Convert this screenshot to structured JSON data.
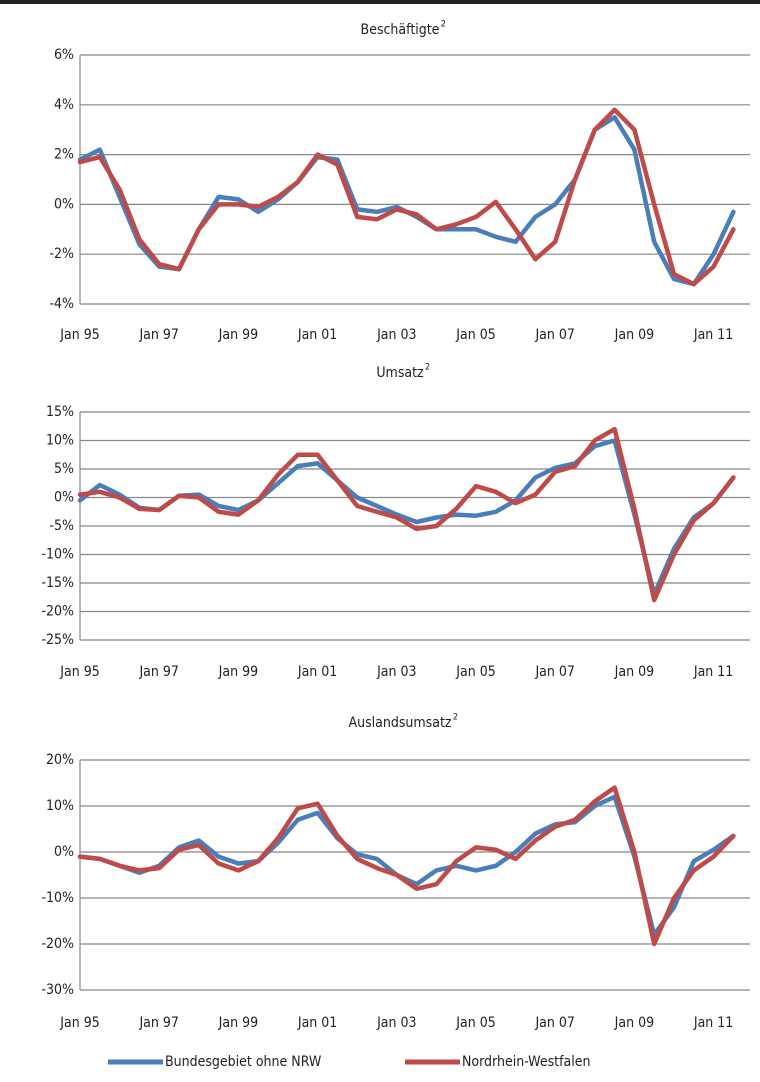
{
  "charts": [
    {
      "type": "line",
      "title": "Beschäftigte",
      "title_note": "2",
      "categories": [
        "Jan 95",
        null,
        null,
        null,
        "Jan 97",
        null,
        null,
        null,
        "Jan 99",
        null,
        null,
        null,
        "Jan 01",
        null,
        null,
        null,
        "Jan 03",
        null,
        null,
        null,
        "Jan 05",
        null,
        null,
        null,
        "Jan 07",
        null,
        null,
        null,
        "Jan 09",
        null,
        null,
        null,
        "Jan 11",
        null
      ],
      "ylim": [
        -4,
        6
      ],
      "yticks": [
        {
          "value": -4,
          "label": "-4%"
        },
        {
          "value": -2,
          "label": "-2%"
        },
        {
          "value": 0,
          "label": "0%"
        },
        {
          "value": 2,
          "label": "2%"
        },
        {
          "value": 4,
          "label": "4%"
        },
        {
          "value": 6,
          "label": "6%"
        }
      ],
      "grid": true,
      "series": [
        {
          "name": "Bundesgebiet ohne NRW",
          "color": "#4a7ebb",
          "values": [
            1.8,
            2.2,
            0.3,
            -1.6,
            -2.5,
            -2.6,
            -1.0,
            0.3,
            0.2,
            -0.3,
            0.2,
            0.9,
            1.9,
            1.8,
            -0.2,
            -0.3,
            -0.1,
            -0.5,
            -1.0,
            -1.0,
            -1.0,
            -1.3,
            -1.5,
            -0.5,
            0.0,
            1.0,
            3.0,
            3.5,
            2.2,
            -1.5,
            -3.0,
            -3.2,
            -2.0,
            -0.3
          ]
        },
        {
          "name": "Nordrhein-Westfalen",
          "color": "#be4b48",
          "values": [
            1.7,
            1.9,
            0.6,
            -1.4,
            -2.4,
            -2.6,
            -1.0,
            0.0,
            0.0,
            -0.1,
            0.3,
            0.9,
            2.0,
            1.6,
            -0.5,
            -0.6,
            -0.2,
            -0.4,
            -1.0,
            -0.8,
            -0.5,
            0.1,
            -1.0,
            -2.2,
            -1.5,
            1.0,
            3.0,
            3.8,
            3.0,
            0.0,
            -2.8,
            -3.2,
            -2.5,
            -1.0
          ]
        }
      ]
    },
    {
      "type": "line",
      "title": "Umsatz",
      "title_note": "2",
      "categories": [
        "Jan 95",
        null,
        null,
        null,
        "Jan 97",
        null,
        null,
        null,
        "Jan 99",
        null,
        null,
        null,
        "Jan 01",
        null,
        null,
        null,
        "Jan 03",
        null,
        null,
        null,
        "Jan 05",
        null,
        null,
        null,
        "Jan 07",
        null,
        null,
        null,
        "Jan 09",
        null,
        null,
        null,
        "Jan 11",
        null
      ],
      "ylim": [
        -25,
        15
      ],
      "yticks": [
        {
          "value": -25,
          "label": "-25%"
        },
        {
          "value": -20,
          "label": "-20%"
        },
        {
          "value": -15,
          "label": "-15%"
        },
        {
          "value": -10,
          "label": "-10%"
        },
        {
          "value": -5,
          "label": "-5%"
        },
        {
          "value": 0,
          "label": "0%"
        },
        {
          "value": 5,
          "label": "5%"
        },
        {
          "value": 10,
          "label": "10%"
        },
        {
          "value": 15,
          "label": "15%"
        }
      ],
      "grid": true,
      "series": [
        {
          "color": "#4a7ebb",
          "values": [
            -0.5,
            2.2,
            0.5,
            -1.8,
            -2.2,
            0.3,
            0.5,
            -1.5,
            -2.2,
            -0.5,
            2.5,
            5.5,
            6.0,
            3.0,
            0.0,
            -1.5,
            -3.0,
            -4.3,
            -3.5,
            -3.0,
            -3.2,
            -2.5,
            -0.5,
            3.5,
            5.2,
            6.0,
            9.0,
            10.0,
            -3.0,
            -17.0,
            -9.0,
            -3.5,
            -1.0,
            3.5
          ]
        },
        {
          "color": "#be4b48",
          "values": [
            0.5,
            1.0,
            0.0,
            -2.0,
            -2.2,
            0.3,
            0.0,
            -2.5,
            -3.0,
            -0.5,
            4.0,
            7.5,
            7.5,
            3.0,
            -1.5,
            -2.5,
            -3.5,
            -5.5,
            -5.0,
            -2.0,
            2.0,
            1.0,
            -1.0,
            0.5,
            4.5,
            5.5,
            10.0,
            12.0,
            -2.0,
            -18.0,
            -10.0,
            -4.0,
            -1.0,
            3.5
          ]
        }
      ]
    },
    {
      "type": "line",
      "title": "Auslandsumsatz",
      "title_note": "2",
      "categories": [
        "Jan 95",
        null,
        null,
        null,
        "Jan 97",
        null,
        null,
        null,
        "Jan 99",
        null,
        null,
        null,
        "Jan 01",
        null,
        null,
        null,
        "Jan 03",
        null,
        null,
        null,
        "Jan 05",
        null,
        null,
        null,
        "Jan 07",
        null,
        null,
        null,
        "Jan 09",
        null,
        null,
        null,
        "Jan 11",
        null
      ],
      "ylim": [
        -30,
        20
      ],
      "yticks": [
        {
          "value": -30,
          "label": "-30%"
        },
        {
          "value": -20,
          "label": "-20%"
        },
        {
          "value": -10,
          "label": "-10%"
        },
        {
          "value": 0,
          "label": "0%"
        },
        {
          "value": 10,
          "label": "10%"
        },
        {
          "value": 20,
          "label": "20%"
        }
      ],
      "grid": true,
      "series": [
        {
          "color": "#4a7ebb",
          "values": [
            -1,
            -1.5,
            -3,
            -4.5,
            -3,
            1,
            2.5,
            -1,
            -2.5,
            -2,
            2,
            7,
            8.5,
            3,
            -0.5,
            -1.5,
            -5,
            -7,
            -4,
            -3,
            -4,
            -3,
            0,
            4,
            6,
            6.5,
            10,
            12,
            -1,
            -18,
            -12,
            -2,
            0.5,
            3.5
          ]
        },
        {
          "color": "#be4b48",
          "values": [
            -1,
            -1.5,
            -3,
            -4,
            -3.5,
            0.5,
            1.5,
            -2.5,
            -4,
            -2,
            3,
            9.5,
            10.5,
            3.5,
            -1.5,
            -3.5,
            -5,
            -8,
            -7,
            -2,
            1,
            0.5,
            -1.5,
            2.5,
            5.5,
            7,
            11,
            14,
            0,
            -20,
            -10,
            -4,
            -1,
            3.5
          ]
        }
      ]
    }
  ]
}
